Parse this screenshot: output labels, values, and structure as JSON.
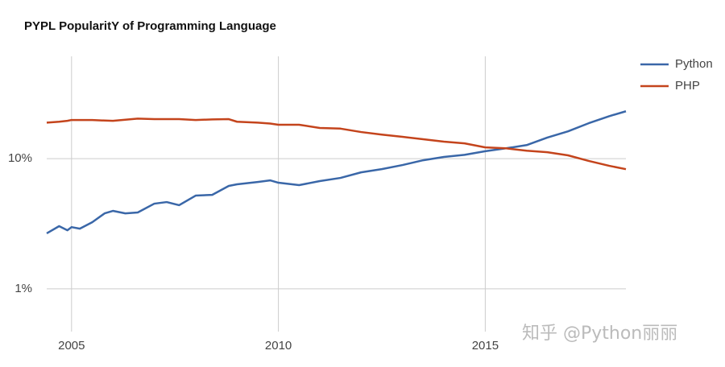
{
  "chart_data": {
    "type": "line",
    "title": "PYPL PopularitY of Programming Language",
    "x": [
      2004.4,
      2004.7,
      2004.9,
      2005.0,
      2005.2,
      2005.5,
      2005.8,
      2006.0,
      2006.3,
      2006.6,
      2007.0,
      2007.3,
      2007.6,
      2008.0,
      2008.4,
      2008.8,
      2009.0,
      2009.5,
      2009.8,
      2010.0,
      2010.5,
      2011.0,
      2011.5,
      2012.0,
      2012.5,
      2013.0,
      2013.5,
      2014.0,
      2014.5,
      2015.0,
      2015.5,
      2016.0,
      2016.5,
      2017.0,
      2017.5,
      2018.0,
      2018.4
    ],
    "series": [
      {
        "name": "Python",
        "color": "#3a67a8",
        "values": [
          2.67,
          3.03,
          2.82,
          2.98,
          2.9,
          3.25,
          3.8,
          3.97,
          3.8,
          3.86,
          4.51,
          4.64,
          4.39,
          5.2,
          5.27,
          6.17,
          6.35,
          6.62,
          6.81,
          6.53,
          6.26,
          6.72,
          7.11,
          7.85,
          8.31,
          8.93,
          9.72,
          10.3,
          10.7,
          11.4,
          12.0,
          12.7,
          14.5,
          16.2,
          18.7,
          21.2,
          23.1
        ]
      },
      {
        "name": "PHP",
        "color": "#c4441c",
        "values": [
          18.9,
          19.2,
          19.5,
          19.8,
          19.8,
          19.8,
          19.6,
          19.5,
          19.9,
          20.3,
          20.1,
          20.1,
          20.1,
          19.8,
          20.0,
          20.1,
          19.2,
          18.9,
          18.6,
          18.2,
          18.2,
          17.2,
          17.0,
          16.0,
          15.3,
          14.7,
          14.1,
          13.5,
          13.1,
          12.2,
          12.0,
          11.5,
          11.2,
          10.6,
          9.6,
          8.8,
          8.3
        ]
      }
    ],
    "xlim": [
      2004.4,
      2018.4
    ],
    "xticks": [
      2005,
      2010,
      2015
    ],
    "ylim": [
      0.47,
      61
    ],
    "yticks": [
      {
        "value": 1,
        "label": "1%"
      },
      {
        "value": 10,
        "label": "10%"
      }
    ],
    "log_y": true,
    "grid": true,
    "legend": "right",
    "watermark": "知乎 @Python丽丽"
  }
}
